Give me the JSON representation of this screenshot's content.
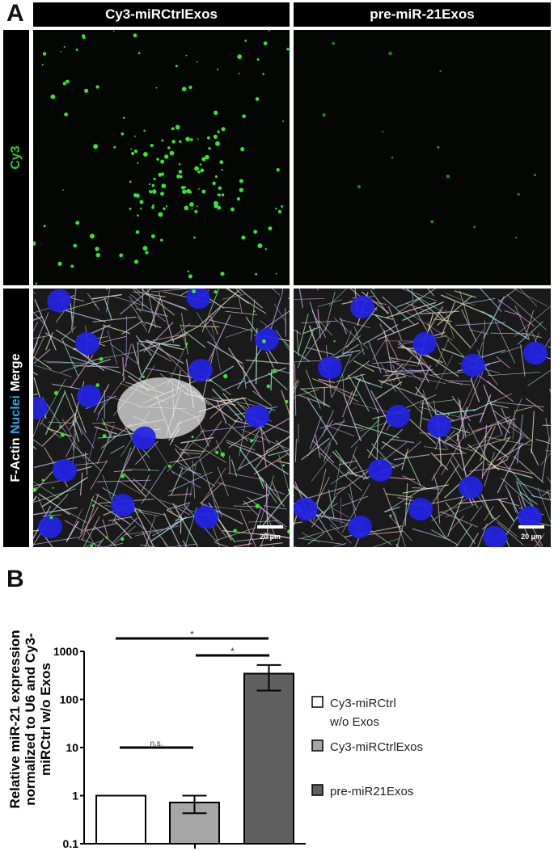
{
  "panel_a": {
    "letter": "A",
    "columns": [
      "Cy3-miRCtrlExos",
      "pre-miR-21Exos"
    ],
    "rows": {
      "cy3": {
        "label": "Cy3",
        "color": "#2ecc2e"
      },
      "merge": {
        "parts": [
          {
            "text": "F-Actin ",
            "color": "#ffffff"
          },
          {
            "text": "Nuclei ",
            "color": "#29a8e0"
          },
          {
            "text": "Merge",
            "color": "#ffffff"
          }
        ]
      }
    },
    "scale_bar_label": "20 µm"
  },
  "panel_b": {
    "letter": "B"
  },
  "chart_data": {
    "type": "bar",
    "ylabel": "Relative miR-21 expression normalized to U6 and Cy3-miRCtrl w/o Exos",
    "yscale": "log",
    "ylim": [
      0.1,
      1000
    ],
    "yticks": [
      "0.1",
      "1",
      "10",
      "100",
      "1000"
    ],
    "grid": false,
    "legend_position": "right",
    "series": [
      {
        "name": "Cy3-miRCtrl w/o Exos",
        "name_lines": [
          "Cy3-miRCtrl",
          "w/o Exos"
        ],
        "value": 1,
        "error": null,
        "color": "#ffffff"
      },
      {
        "name": "Cy3-miRCtrlExos",
        "name_lines": [
          "Cy3-miRCtrlExos"
        ],
        "value": 0.72,
        "error": [
          0.43,
          1.0
        ],
        "color": "#a6a6a6"
      },
      {
        "name": "pre-miR21Exos",
        "name_lines": [
          "pre-miR21Exos"
        ],
        "value": 345,
        "error": [
          153,
          520
        ],
        "color": "#5f5f5f"
      }
    ],
    "significance": [
      {
        "from": 0,
        "to": 2,
        "label": "*"
      },
      {
        "from": 1,
        "to": 2,
        "label": "*"
      },
      {
        "from": 0,
        "to": 1,
        "label": "n.s."
      }
    ]
  }
}
